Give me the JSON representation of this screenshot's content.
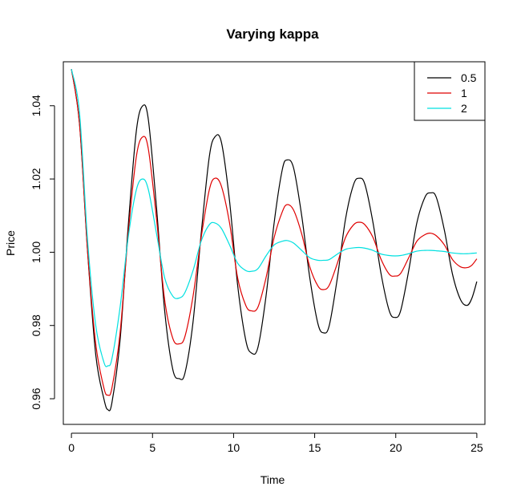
{
  "chart_data": {
    "type": "line",
    "title": "Varying kappa",
    "xlabel": "Time",
    "ylabel": "Price",
    "xlim": [
      -0.5,
      25.5
    ],
    "ylim": [
      0.953,
      1.052
    ],
    "xticks": [
      0,
      5,
      10,
      15,
      20,
      25
    ],
    "xtick_labels": [
      "0",
      "5",
      "10",
      "15",
      "20",
      "25"
    ],
    "yticks": [
      0.96,
      0.98,
      1.0,
      1.02,
      1.04
    ],
    "ytick_labels": [
      "0.96",
      "0.98",
      "1.00",
      "1.02",
      "1.04"
    ],
    "grid": false,
    "legend_position": "top-right",
    "series": [
      {
        "name": "0.5",
        "color": "#000000",
        "x": [
          0,
          0.5,
          1,
          1.5,
          2.0,
          2.25,
          2.5,
          3,
          3.5,
          4,
          4.4,
          4.75,
          5.25,
          5.75,
          6.25,
          6.65,
          7.0,
          7.5,
          8.0,
          8.5,
          8.85,
          9.25,
          9.75,
          10.25,
          10.75,
          11.1,
          11.5,
          12.0,
          12.5,
          13.0,
          13.3,
          13.7,
          14.2,
          14.7,
          15.2,
          15.55,
          15.9,
          16.4,
          16.9,
          17.4,
          17.75,
          18.1,
          18.6,
          19.1,
          19.6,
          19.95,
          20.3,
          20.8,
          21.3,
          21.8,
          22.15,
          22.5,
          23.0,
          23.5,
          24.0,
          24.4,
          24.7,
          25.0
        ],
        "y": [
          1.05,
          1.035,
          1.0,
          0.972,
          0.96,
          0.957,
          0.959,
          0.976,
          1.007,
          1.033,
          1.04,
          1.036,
          1.012,
          0.984,
          0.968,
          0.9655,
          0.967,
          0.981,
          1.005,
          1.026,
          1.0315,
          1.03,
          1.014,
          0.991,
          0.976,
          0.9725,
          0.974,
          0.988,
          1.008,
          1.0225,
          1.0252,
          1.023,
          1.01,
          0.993,
          0.9805,
          0.978,
          0.98,
          0.993,
          1.009,
          1.0185,
          1.0202,
          1.0185,
          1.008,
          0.994,
          0.984,
          0.9822,
          0.984,
          0.995,
          1.008,
          1.015,
          1.0162,
          1.015,
          1.006,
          0.994,
          0.987,
          0.9855,
          0.9875,
          0.992
        ]
      },
      {
        "name": "1",
        "color": "#df0000",
        "x": [
          0,
          0.5,
          1,
          1.5,
          2.0,
          2.25,
          2.5,
          3,
          3.5,
          4,
          4.4,
          4.75,
          5.25,
          5.75,
          6.25,
          6.65,
          7.0,
          7.5,
          8.0,
          8.5,
          8.85,
          9.25,
          9.75,
          10.25,
          10.75,
          11.1,
          11.5,
          12.0,
          12.5,
          13.0,
          13.3,
          13.7,
          14.2,
          14.7,
          15.2,
          15.55,
          15.9,
          16.4,
          16.9,
          17.4,
          17.75,
          18.1,
          18.6,
          19.1,
          19.6,
          19.95,
          20.3,
          20.8,
          21.3,
          21.8,
          22.15,
          22.5,
          23.0,
          23.5,
          24.0,
          24.4,
          24.7,
          25.0
        ],
        "y": [
          1.05,
          1.035,
          1.0,
          0.975,
          0.963,
          0.961,
          0.963,
          0.978,
          1.005,
          1.026,
          1.0315,
          1.028,
          1.009,
          0.987,
          0.9765,
          0.975,
          0.977,
          0.988,
          1.004,
          1.017,
          1.0202,
          1.018,
          1.008,
          0.993,
          0.9855,
          0.984,
          0.985,
          0.993,
          1.004,
          1.011,
          1.013,
          1.0115,
          1.005,
          0.996,
          0.9908,
          0.9898,
          0.991,
          0.997,
          1.004,
          1.0075,
          1.0082,
          1.0075,
          1.004,
          0.998,
          0.994,
          0.9935,
          0.9942,
          0.9985,
          1.003,
          1.0048,
          1.0052,
          1.0045,
          1.002,
          0.998,
          0.996,
          0.9958,
          0.9965,
          0.9982
        ]
      },
      {
        "name": "2",
        "color": "#00e0e0",
        "x": [
          0,
          0.5,
          1,
          1.5,
          2.0,
          2.25,
          2.5,
          3,
          3.5,
          4,
          4.4,
          4.75,
          5.25,
          5.75,
          6.25,
          6.65,
          7.0,
          7.5,
          8.0,
          8.5,
          8.85,
          9.25,
          9.75,
          10.25,
          10.75,
          11.1,
          11.5,
          12.0,
          12.5,
          13.0,
          13.3,
          13.7,
          14.2,
          14.7,
          15.2,
          15.55,
          15.9,
          16.4,
          16.9,
          17.4,
          17.75,
          18.1,
          18.6,
          19.1,
          19.6,
          19.95,
          20.3,
          20.8,
          21.3,
          21.8,
          22.15,
          22.5,
          23.0,
          23.5,
          24.0,
          24.4,
          24.7,
          25.0
        ],
        "y": [
          1.05,
          1.038,
          1.003,
          0.98,
          0.97,
          0.969,
          0.971,
          0.985,
          1.004,
          1.017,
          1.02,
          1.017,
          1.005,
          0.993,
          0.988,
          0.9875,
          0.989,
          0.995,
          1.003,
          1.0075,
          1.008,
          1.0065,
          1.002,
          0.997,
          0.995,
          0.9948,
          0.9955,
          0.999,
          1.002,
          1.003,
          1.0032,
          1.0025,
          1.0005,
          0.9985,
          0.9978,
          0.9978,
          0.998,
          0.9995,
          1.0008,
          1.0012,
          1.0013,
          1.0011,
          1.0005,
          0.9995,
          0.9991,
          0.999,
          0.9991,
          0.9996,
          1.0003,
          1.0005,
          1.0005,
          1.0004,
          1.0002,
          0.9998,
          0.9996,
          0.9996,
          0.9997,
          0.9998
        ]
      }
    ]
  }
}
